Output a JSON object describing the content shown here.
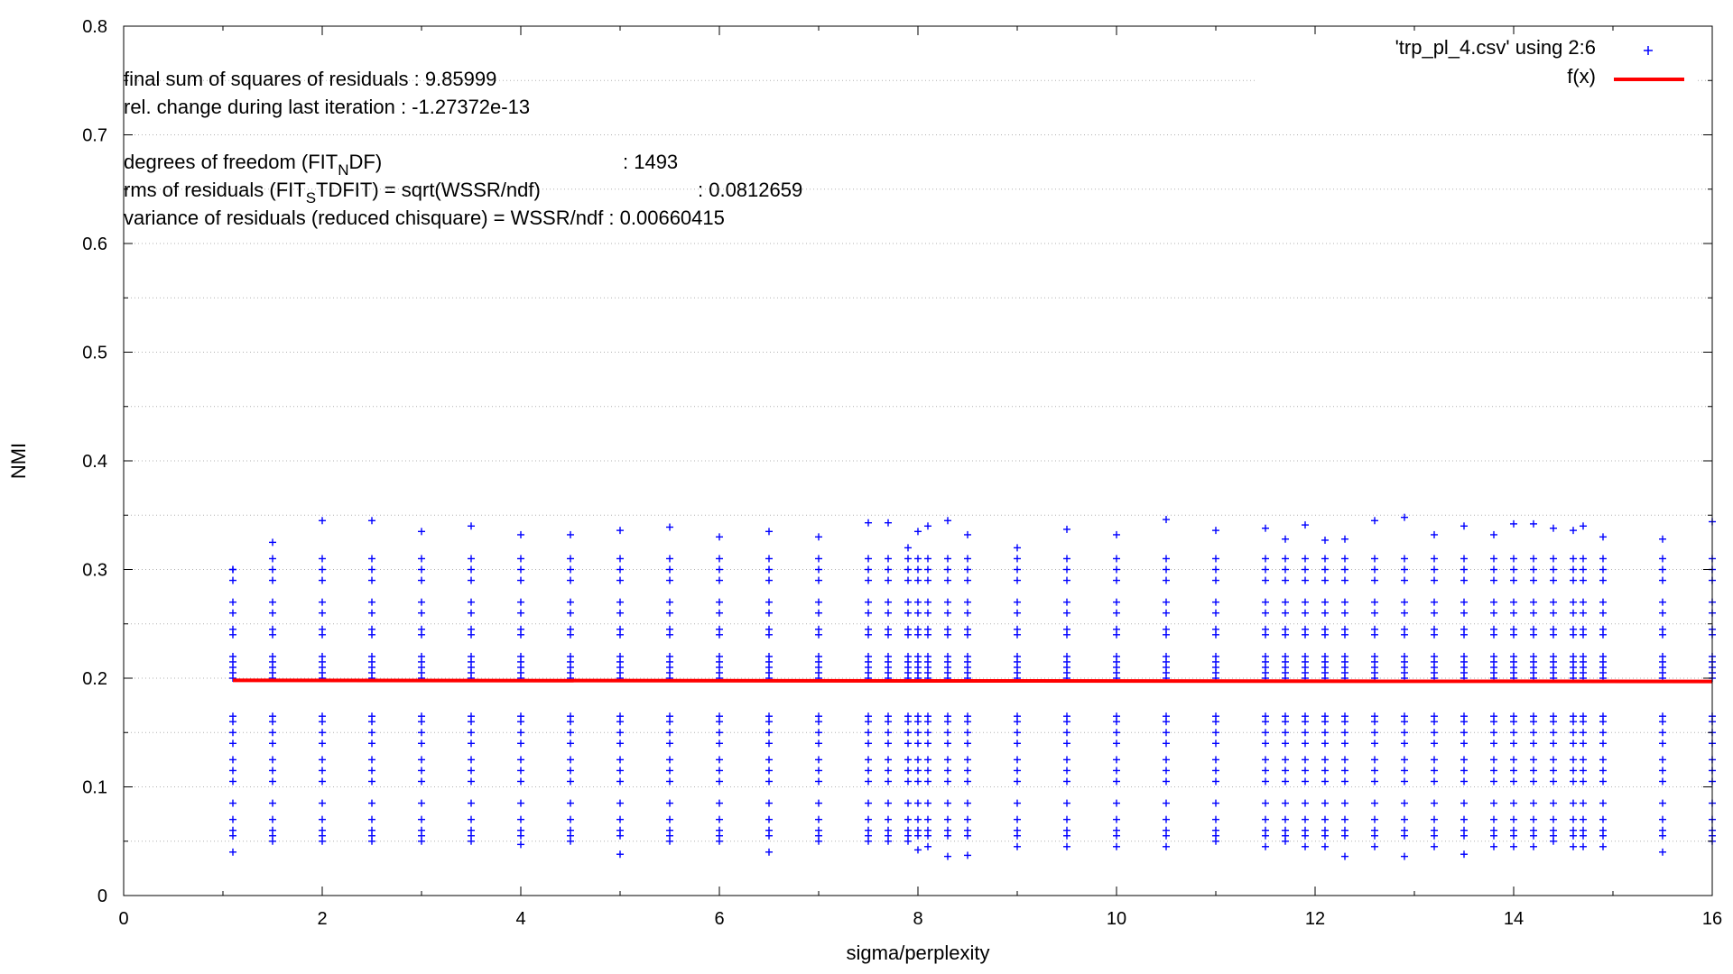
{
  "chart_data": {
    "type": "scatter",
    "xlabel": "sigma/perplexity",
    "ylabel": "NMI",
    "xlim": [
      0,
      16
    ],
    "ylim": [
      0,
      0.8
    ],
    "x_ticks": [
      "0",
      "2",
      "4",
      "6",
      "8",
      "10",
      "12",
      "14",
      "16"
    ],
    "y_ticks": [
      "0",
      "0.1",
      "0.2",
      "0.3",
      "0.4",
      "0.5",
      "0.6",
      "0.7",
      "0.8"
    ],
    "grid": true,
    "legend_position": "top-right",
    "legend": [
      {
        "label": "'trp_pl_4.csv' using 2:6",
        "marker": "plus",
        "color": "#0000ff"
      },
      {
        "label": "f(x)",
        "marker": "line",
        "color": "#ff0000"
      }
    ],
    "annotations": {
      "final_ssr": "final sum of squares of residuals : 9.85999",
      "rel_change": "rel. change during last iteration : -1.27372e-13",
      "dof_prefix": "degrees of freedom    (FIT",
      "dof_sub": "N",
      "dof_suffix": "DF)",
      "dof_value": ": 1493",
      "rms_prefix": "rms of residuals      (FIT",
      "rms_sub": "S",
      "rms_suffix": "TDFIT) = sqrt(WSSR/ndf)",
      "rms_value": ": 0.0812659",
      "variance": "variance of residuals (reduced chisquare) = WSSR/ndf   : 0.00660415"
    },
    "series": [
      {
        "name": "'trp_pl_4.csv' using 2:6",
        "type": "scatter",
        "color": "#0000ff",
        "x_values": [
          1.1,
          1.5,
          2.0,
          2.5,
          3.0,
          3.5,
          4.0,
          4.5,
          5.0,
          5.5,
          6.0,
          6.5,
          7.0,
          7.5,
          7.7,
          7.9,
          8.0,
          8.1,
          8.3,
          8.5,
          9.0,
          9.5,
          10.0,
          10.5,
          11.0,
          11.5,
          11.7,
          11.9,
          12.1,
          12.3,
          12.6,
          12.9,
          13.2,
          13.5,
          13.8,
          14.0,
          14.2,
          14.4,
          14.6,
          14.7,
          14.9,
          15.5,
          16.0
        ],
        "column_max_y": [
          0.3,
          0.325,
          0.345,
          0.345,
          0.335,
          0.34,
          0.332,
          0.332,
          0.336,
          0.339,
          0.33,
          0.335,
          0.33,
          0.343,
          0.343,
          0.32,
          0.335,
          0.34,
          0.345,
          0.332,
          0.32,
          0.337,
          0.332,
          0.346,
          0.336,
          0.338,
          0.328,
          0.341,
          0.327,
          0.328,
          0.345,
          0.348,
          0.332,
          0.34,
          0.332,
          0.342,
          0.342,
          0.338,
          0.336,
          0.34,
          0.33,
          0.328,
          0.344
        ],
        "column_min_y": [
          0.04,
          0.05,
          0.05,
          0.05,
          0.05,
          0.05,
          0.047,
          0.05,
          0.038,
          0.05,
          0.05,
          0.04,
          0.05,
          0.05,
          0.05,
          0.05,
          0.042,
          0.045,
          0.036,
          0.037,
          0.045,
          0.045,
          0.045,
          0.045,
          0.05,
          0.045,
          0.05,
          0.045,
          0.045,
          0.036,
          0.045,
          0.036,
          0.045,
          0.038,
          0.045,
          0.045,
          0.045,
          0.05,
          0.045,
          0.045,
          0.045,
          0.04,
          0.05
        ],
        "y_levels_upper": [
          0.2,
          0.205,
          0.21,
          0.215,
          0.22,
          0.24,
          0.245,
          0.26,
          0.27,
          0.29,
          0.3,
          0.31
        ],
        "y_levels_lower": [
          0.055,
          0.06,
          0.07,
          0.085,
          0.105,
          0.115,
          0.125,
          0.14,
          0.15,
          0.16,
          0.165
        ]
      },
      {
        "name": "f(x)",
        "type": "line",
        "color": "#ff0000",
        "x": [
          1.1,
          16
        ],
        "y": [
          0.198,
          0.197
        ]
      }
    ]
  }
}
